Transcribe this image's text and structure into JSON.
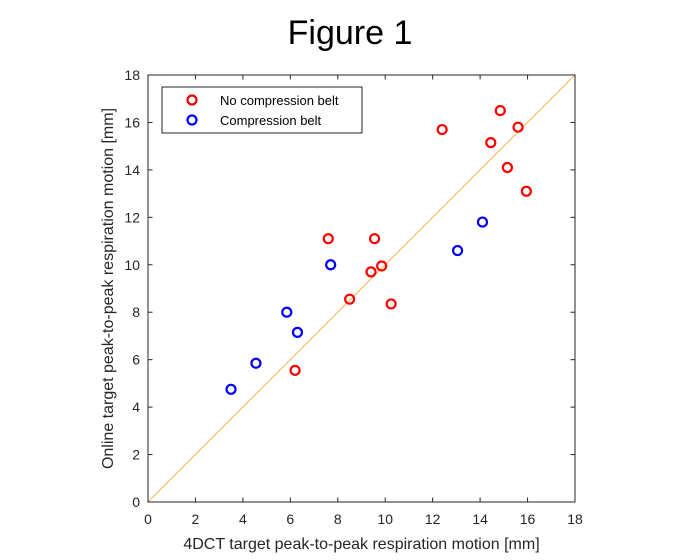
{
  "figure_title": "Figure 1",
  "chart_data": {
    "type": "scatter",
    "xlabel": "4DCT target peak-to-peak respiration motion [mm]",
    "ylabel": "Online target peak-to-peak respiration motion [mm]",
    "xlim": [
      0,
      18
    ],
    "ylim": [
      0,
      18
    ],
    "xticks": [
      "0",
      "2",
      "4",
      "6",
      "8",
      "10",
      "12",
      "14",
      "16",
      "18"
    ],
    "yticks": [
      "0",
      "2",
      "4",
      "6",
      "8",
      "10",
      "12",
      "14",
      "16",
      "18"
    ],
    "grid": false,
    "legend_position": "top-left",
    "identity_line": {
      "from": [
        0,
        0
      ],
      "to": [
        18,
        18
      ],
      "color": "#f5b65a"
    },
    "series": [
      {
        "name": "No compression belt",
        "color": "#ff0000",
        "points": [
          {
            "x": 6.2,
            "y": 5.55
          },
          {
            "x": 7.6,
            "y": 11.1
          },
          {
            "x": 8.5,
            "y": 8.55
          },
          {
            "x": 9.4,
            "y": 9.7
          },
          {
            "x": 9.55,
            "y": 11.1
          },
          {
            "x": 9.85,
            "y": 9.95
          },
          {
            "x": 10.25,
            "y": 8.35
          },
          {
            "x": 12.4,
            "y": 15.7
          },
          {
            "x": 14.45,
            "y": 15.15
          },
          {
            "x": 14.85,
            "y": 16.5
          },
          {
            "x": 15.15,
            "y": 14.1
          },
          {
            "x": 15.6,
            "y": 15.8
          },
          {
            "x": 15.95,
            "y": 13.1
          }
        ]
      },
      {
        "name": "Compression belt",
        "color": "#0000ff",
        "points": [
          {
            "x": 3.5,
            "y": 4.75
          },
          {
            "x": 4.55,
            "y": 5.85
          },
          {
            "x": 5.85,
            "y": 8.0
          },
          {
            "x": 6.3,
            "y": 7.15
          },
          {
            "x": 7.7,
            "y": 10.0
          },
          {
            "x": 13.05,
            "y": 10.6
          },
          {
            "x": 14.1,
            "y": 11.8
          }
        ]
      }
    ]
  }
}
